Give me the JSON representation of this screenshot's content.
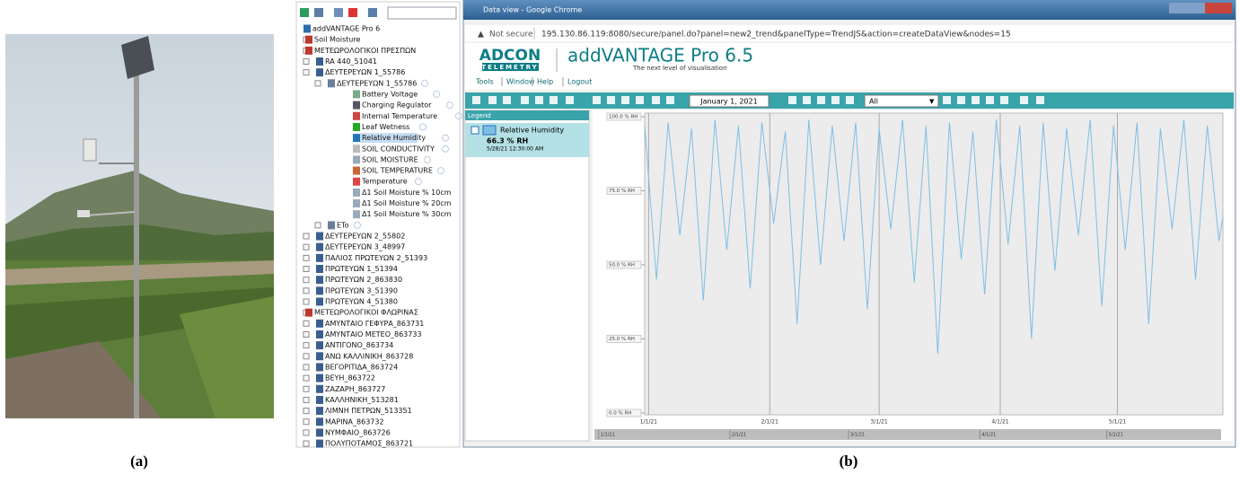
{
  "captions": [
    "(a)",
    "(b)"
  ],
  "tree": {
    "items": [
      "addVANTAGE Pro 6",
      "Soil Moisture",
      "ΜΕΤΕΩΡΟΛΟΓΙΚΟΙ ΠΡΕΣΠΩΝ",
      "RA 440_51041",
      "ΔΕΥΤΕΡΕΥΩΝ 1_55786",
      "ΔΕΥΤΕΡΕΥΩΝ 1_55786",
      "Battery Voltage",
      "Charging Regulator",
      "Internal Temperature",
      "Leaf Wetness",
      "Relative Humidity",
      "SOIL CONDUCTIVITY",
      "SOIL MOISTURE",
      "SOIL TEMPERATURE",
      "Temperature",
      "Δ1 Soil Moisture % 10cm",
      "Δ1 Soil Moisture % 20cm",
      "Δ1 Soil Moisture % 30cm",
      "ETo",
      "ΔΕΥΤΕΡΕΥΩΝ 2_55802",
      "ΔΕΥΤΕΡΕΥΩΝ 3_48997",
      "ΠΑΛΙΟΣ ΠΡΩΤΕΥΩΝ 2_51393",
      "ΠΡΩΤΕΥΩΝ 1_51394",
      "ΠΡΩΤΕΥΩΝ 2_863830",
      "ΠΡΩΤΕΥΩΝ 3_51390",
      "ΠΡΩΤΕΥΩΝ 4_51380",
      "ΜΕΤΕΩΡΟΛΟΓΙΚΟΙ ΦΛΩΡΙΝΑΣ",
      "ΑΜΥΝΤΑΙΟ ΓΕΦΥΡΑ_863731",
      "ΑΜΥΝΤΑΙΟ ΜΕΤΕΟ_863733",
      "ΑΝΤΙΓΟΝΟ_863734",
      "ΑΝΩ ΚΑΛΛΙΝΙΚΗ_863728",
      "ΒΕΓΟΡΙΤΙΔΑ_863724",
      "ΒΕΥΗ_863722",
      "ΖΑΖΑΡΗ_863727",
      "ΚΑΛΛΗΝΙΚΗ_513281",
      "ΛΙΜΝΗ ΠΕΤΡΩΝ_513351",
      "ΜΑΡΙΝΑ_863732",
      "ΝΥΜΦΑΙΟ_863726",
      "ΠΟΛΥΠΟΤΑΜΟΣ_863721"
    ]
  },
  "browser": {
    "title": "Data view - Google Chrome",
    "security": "Not secure",
    "url": "195.130.86.119:8080/secure/panel.do?panel=new2_trend&panelType=TrendJS&action=createDataView&nodes=15"
  },
  "app": {
    "logo": "ADCON",
    "logo_sub": "TELEMETRY",
    "title": "addVANTAGE Pro 6.5",
    "subtitle": "The next level of visualisation",
    "menu": [
      "Tools",
      "Window",
      "Help",
      "Logout"
    ],
    "date": "January 1, 2021",
    "range": "All"
  },
  "legend": {
    "title": "Legend",
    "value": "66.3 % RH",
    "time": "5/28/21 12:30:00 AM"
  },
  "chart_data": {
    "type": "line",
    "x": [
      "2020-12-31",
      "2021-01-03",
      "2021-01-06",
      "2021-01-09",
      "2021-01-12",
      "2021-01-15",
      "2021-01-18",
      "2021-01-21",
      "2021-01-24",
      "2021-01-27",
      "2021-01-30",
      "2021-02-02",
      "2021-02-05",
      "2021-02-08",
      "2021-02-11",
      "2021-02-14",
      "2021-02-17",
      "2021-02-20",
      "2021-02-23",
      "2021-02-26",
      "2021-03-01",
      "2021-03-04",
      "2021-03-07",
      "2021-03-10",
      "2021-03-13",
      "2021-03-16",
      "2021-03-19",
      "2021-03-22",
      "2021-03-25",
      "2021-03-28",
      "2021-03-31",
      "2021-04-03",
      "2021-04-06",
      "2021-04-09",
      "2021-04-12",
      "2021-04-15",
      "2021-04-18",
      "2021-04-21",
      "2021-04-24",
      "2021-04-27",
      "2021-04-30",
      "2021-05-03",
      "2021-05-06",
      "2021-05-09",
      "2021-05-12",
      "2021-05-15",
      "2021-05-18",
      "2021-05-21",
      "2021-05-24",
      "2021-05-27",
      "2021-05-28"
    ],
    "series": [
      {
        "name": "Relative Humidity",
        "color": "#7dbfe6",
        "values": [
          97,
          45,
          98,
          60,
          96,
          38,
          99,
          55,
          97,
          42,
          98,
          64,
          95,
          30,
          99,
          50,
          97,
          58,
          98,
          35,
          96,
          62,
          99,
          44,
          97,
          20,
          98,
          52,
          95,
          40,
          99,
          57,
          97,
          25,
          98,
          48,
          96,
          60,
          99,
          36,
          97,
          55,
          98,
          30,
          96,
          62,
          99,
          45,
          97,
          58,
          66.3
        ]
      }
    ],
    "xlim": [
      "2020-12-31",
      "2021-05-28"
    ],
    "ylim": [
      0,
      100
    ],
    "xticks": [
      {
        "value": "2021-01-01",
        "label": "1/1/21"
      },
      {
        "value": "2021-02-01",
        "label": "2/1/21"
      },
      {
        "value": "2021-03-01",
        "label": "3/1/21"
      },
      {
        "value": "2021-04-01",
        "label": "4/1/21"
      },
      {
        "value": "2021-05-01",
        "label": "5/1/21"
      }
    ],
    "yticks": [
      {
        "value": 0,
        "label": "0.0 % RH"
      },
      {
        "value": 25,
        "label": "25.0 % RH"
      },
      {
        "value": 50,
        "label": "50.0 % RH"
      },
      {
        "value": 75,
        "label": "75.0 % RH"
      },
      {
        "value": 100,
        "label": "100.0 % RH"
      }
    ],
    "grid": "x"
  }
}
